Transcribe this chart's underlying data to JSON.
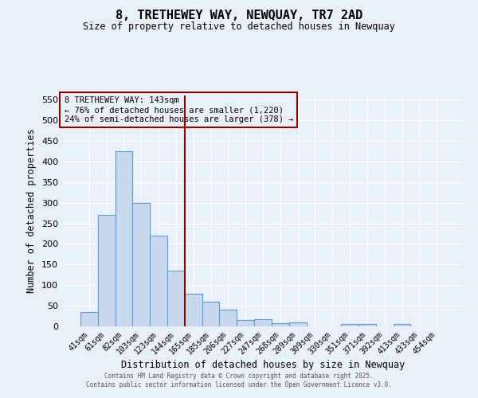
{
  "title": "8, TRETHEWEY WAY, NEWQUAY, TR7 2AD",
  "subtitle": "Size of property relative to detached houses in Newquay",
  "xlabel": "Distribution of detached houses by size in Newquay",
  "ylabel": "Number of detached properties",
  "bar_labels": [
    "41sqm",
    "61sqm",
    "82sqm",
    "103sqm",
    "123sqm",
    "144sqm",
    "165sqm",
    "185sqm",
    "206sqm",
    "227sqm",
    "247sqm",
    "268sqm",
    "289sqm",
    "309sqm",
    "330sqm",
    "351sqm",
    "371sqm",
    "392sqm",
    "413sqm",
    "433sqm",
    "454sqm"
  ],
  "bar_values": [
    35,
    270,
    425,
    300,
    220,
    135,
    80,
    60,
    40,
    15,
    17,
    7,
    10,
    0,
    0,
    5,
    5,
    0,
    5,
    0,
    0
  ],
  "bar_color": "#c9d9ed",
  "bar_edge_color": "#5b9bd5",
  "vline_x_index": 5,
  "vline_color": "#8b0000",
  "annotation_title": "8 TRETHEWEY WAY: 143sqm",
  "annotation_line1": "← 76% of detached houses are smaller (1,220)",
  "annotation_line2": "24% of semi-detached houses are larger (378) →",
  "annotation_box_color": "#8b0000",
  "ylim": [
    0,
    560
  ],
  "yticks": [
    0,
    50,
    100,
    150,
    200,
    250,
    300,
    350,
    400,
    450,
    500,
    550
  ],
  "background_color": "#eaf0f8",
  "footer_line1": "Contains HM Land Registry data © Crown copyright and database right 2025.",
  "footer_line2": "Contains public sector information licensed under the Open Government Licence v3.0."
}
